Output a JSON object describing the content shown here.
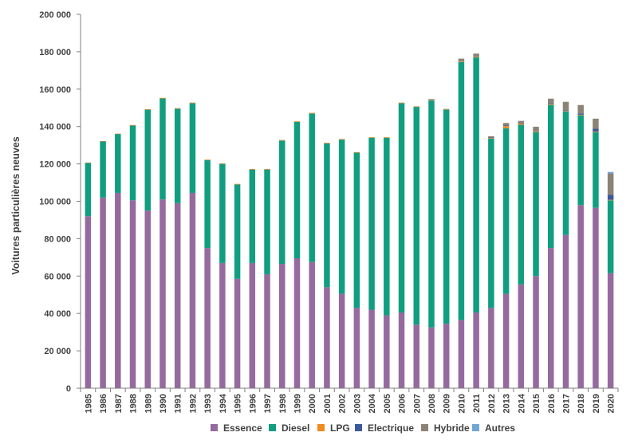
{
  "chart_data": {
    "type": "bar",
    "stacked": true,
    "ylabel": "Voitures particulières neuves",
    "xlabel": "",
    "ylim": [
      0,
      200000
    ],
    "yticks": [
      0,
      20000,
      40000,
      60000,
      80000,
      100000,
      120000,
      140000,
      160000,
      180000,
      200000
    ],
    "ytick_labels": [
      "0",
      "20 000",
      "40 000",
      "60 000",
      "80 000",
      "100 000",
      "120 000",
      "140 000",
      "160 000",
      "180 000",
      "200 000"
    ],
    "grid": false,
    "legend_position": "bottom",
    "categories": [
      "1985",
      "1986",
      "1987",
      "1988",
      "1989",
      "1990",
      "1991",
      "1992",
      "1993",
      "1994",
      "1995",
      "1996",
      "1997",
      "1998",
      "1999",
      "2000",
      "2001",
      "2002",
      "2003",
      "2004",
      "2005",
      "2006",
      "2007",
      "2008",
      "2009",
      "2010",
      "2011",
      "2012",
      "2013",
      "2014",
      "2015",
      "2016",
      "2017",
      "2018",
      "2019",
      "2020"
    ],
    "series": [
      {
        "name": "Essence",
        "color": "#956a9e",
        "values": [
          92000,
          102000,
          104500,
          100500,
          95000,
          101000,
          99000,
          104500,
          75000,
          67000,
          58500,
          67000,
          61000,
          66500,
          69500,
          67500,
          54000,
          50500,
          43000,
          42000,
          39000,
          40500,
          34000,
          32500,
          34500,
          36500,
          40500,
          43000,
          50500,
          55500,
          60000,
          75000,
          82000,
          98000,
          96500,
          61500
        ]
      },
      {
        "name": "Diesel",
        "color": "#119e80",
        "values": [
          28500,
          30000,
          31500,
          40000,
          54000,
          54000,
          50500,
          48000,
          47000,
          53000,
          50500,
          50000,
          56000,
          66000,
          73000,
          79500,
          77000,
          82500,
          83000,
          92000,
          95000,
          112000,
          116500,
          121500,
          114500,
          138000,
          136500,
          90500,
          88500,
          85500,
          77000,
          76500,
          66000,
          48000,
          40500,
          39000
        ]
      },
      {
        "name": "LPG",
        "color": "#f08a1e",
        "values": [
          200,
          200,
          200,
          300,
          300,
          300,
          300,
          300,
          300,
          300,
          300,
          300,
          300,
          300,
          300,
          300,
          300,
          300,
          300,
          300,
          300,
          300,
          300,
          300,
          300,
          300,
          300,
          300,
          1200,
          700,
          400,
          300,
          300,
          300,
          300,
          300
        ]
      },
      {
        "name": "Electrique",
        "color": "#3b5a9d",
        "values": [
          0,
          0,
          0,
          0,
          0,
          0,
          0,
          0,
          0,
          0,
          0,
          0,
          0,
          0,
          0,
          0,
          0,
          0,
          0,
          0,
          0,
          0,
          0,
          0,
          0,
          0,
          0,
          300,
          300,
          300,
          300,
          300,
          400,
          700,
          1500,
          2600
        ]
      },
      {
        "name": "Hybride",
        "color": "#8c8377",
        "values": [
          0,
          0,
          0,
          0,
          0,
          0,
          0,
          0,
          0,
          0,
          0,
          0,
          0,
          0,
          0,
          0,
          0,
          0,
          0,
          0,
          0,
          0,
          0,
          400,
          100,
          1500,
          1700,
          700,
          1400,
          1000,
          2200,
          2800,
          4500,
          4500,
          5400,
          11500
        ]
      },
      {
        "name": "Autres",
        "color": "#72a7d4",
        "values": [
          0,
          0,
          0,
          0,
          0,
          0,
          0,
          0,
          0,
          0,
          0,
          0,
          0,
          0,
          0,
          0,
          0,
          0,
          0,
          0,
          0,
          0,
          0,
          0,
          0,
          0,
          0,
          0,
          0,
          0,
          0,
          0,
          0,
          0,
          0,
          800
        ]
      }
    ]
  }
}
